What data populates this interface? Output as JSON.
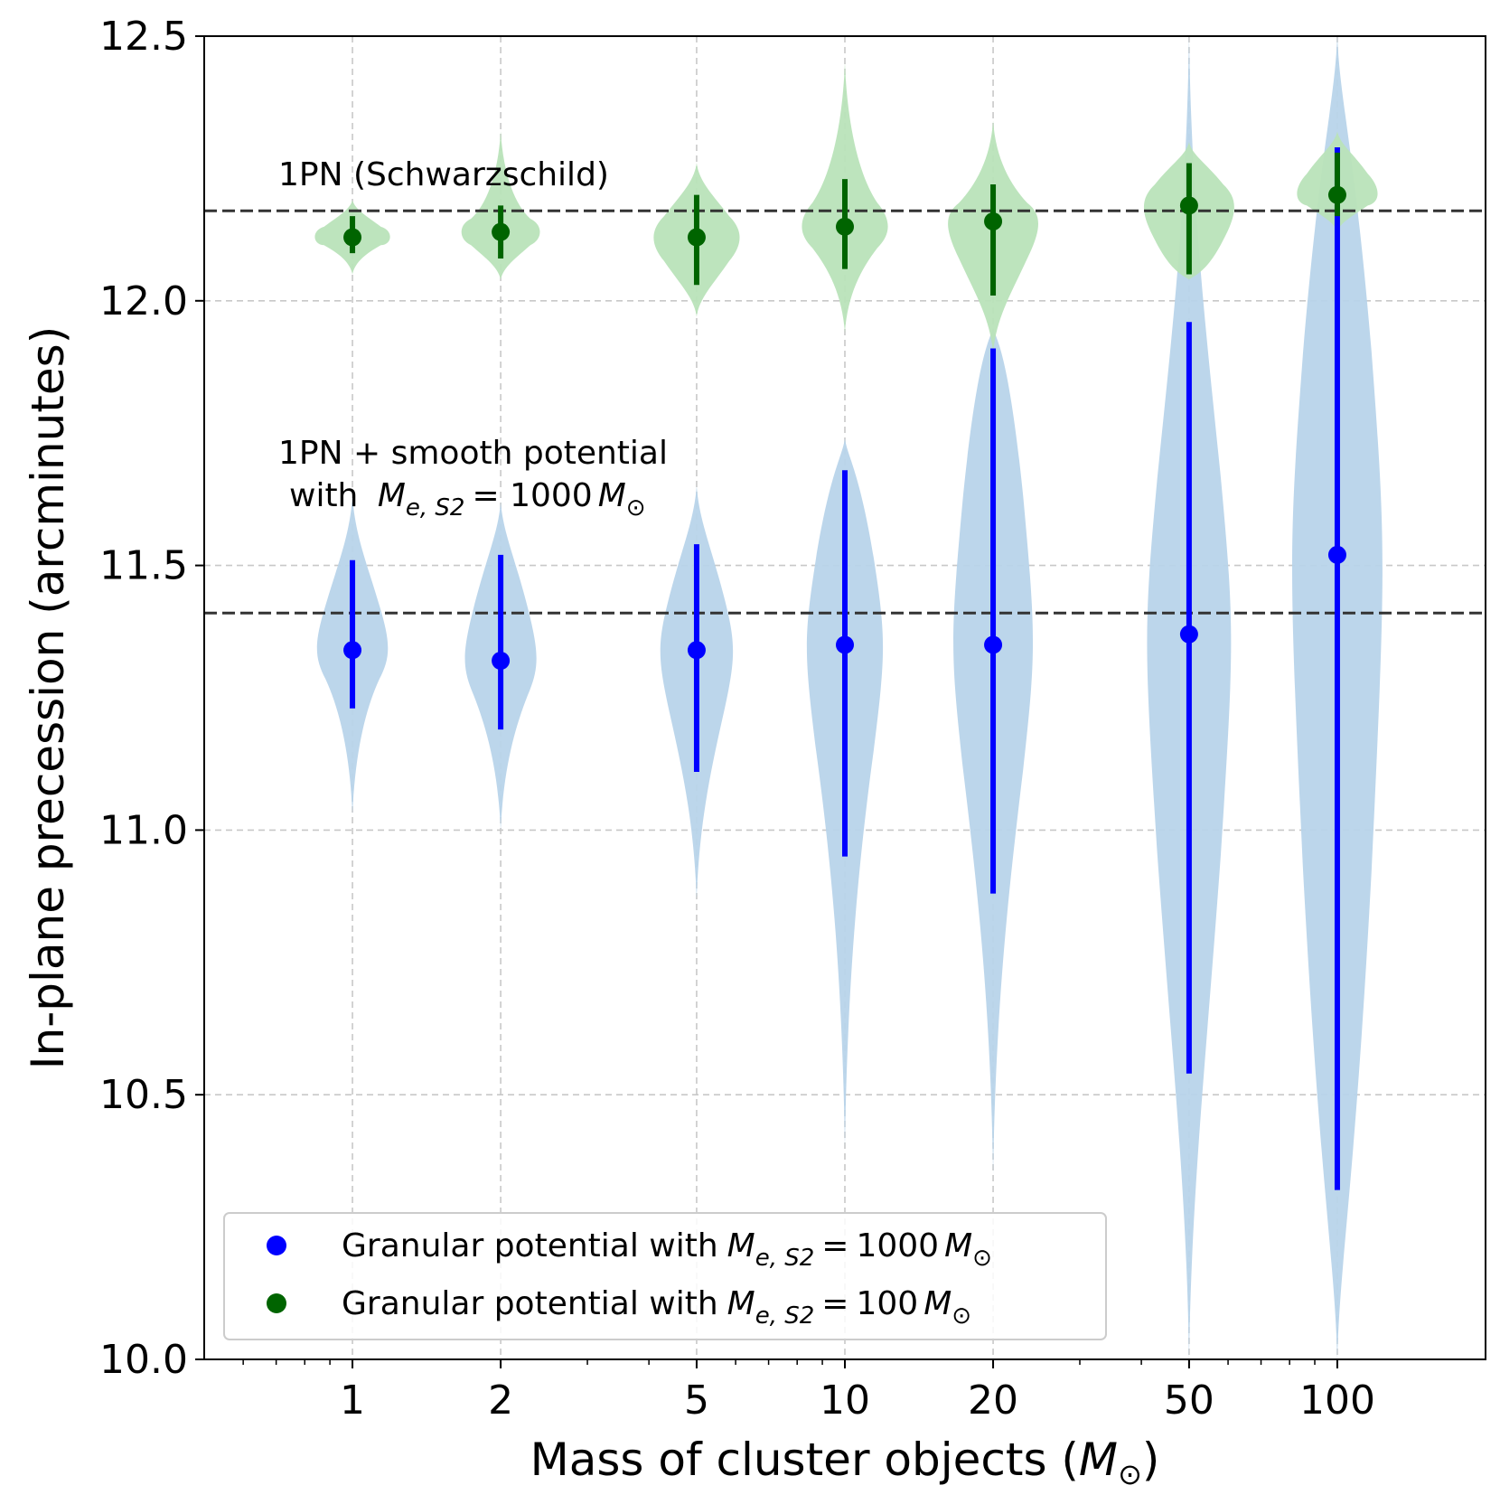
{
  "chart_data": {
    "type": "violin",
    "xscale": "log",
    "xlim": [
      0.5,
      200
    ],
    "ylim": [
      10.0,
      12.5
    ],
    "grid": true,
    "legend_position": "lower-left",
    "xlabel": {
      "text": "Mass of cluster objects (",
      "sym": "M",
      "sub": "⊙",
      "tail": ")"
    },
    "ylabel": "In-plane precession (arcminutes)",
    "xticks": [
      {
        "value": 1,
        "label": "1"
      },
      {
        "value": 2,
        "label": "2"
      },
      {
        "value": 5,
        "label": "5"
      },
      {
        "value": 10,
        "label": "10"
      },
      {
        "value": 20,
        "label": "20"
      },
      {
        "value": 50,
        "label": "50"
      },
      {
        "value": 100,
        "label": "100"
      }
    ],
    "yticks": [
      {
        "value": 10.0,
        "label": "10.0"
      },
      {
        "value": 10.5,
        "label": "10.5"
      },
      {
        "value": 11.0,
        "label": "11.0"
      },
      {
        "value": 11.5,
        "label": "11.5"
      },
      {
        "value": 12.0,
        "label": "12.0"
      },
      {
        "value": 12.5,
        "label": "12.5"
      }
    ],
    "reference_lines": [
      {
        "y": 12.17,
        "label": "1PN (Schwarzschild)"
      },
      {
        "y": 11.41,
        "label_line1": "1PN + smooth potential",
        "label_line2_prefix": "with",
        "label_line2_math": "M_e,S2 = 1000 M⊙"
      }
    ],
    "series": [
      {
        "name": "Granular potential with M_e,S2 = 1000 M⊙",
        "legend_prefix": "Granular potential with",
        "legend_value": "1000",
        "color": "#0000ff",
        "violin_color": "#b8d4ea",
        "points": [
          {
            "x": 1,
            "median": 11.34,
            "err_low": 11.23,
            "err_high": 11.51,
            "min": 11.03,
            "max": 11.63
          },
          {
            "x": 2,
            "median": 11.32,
            "err_low": 11.19,
            "err_high": 11.52,
            "min": 11.0,
            "max": 11.62
          },
          {
            "x": 5,
            "median": 11.34,
            "err_low": 11.11,
            "err_high": 11.54,
            "min": 10.87,
            "max": 11.65
          },
          {
            "x": 10,
            "median": 11.35,
            "err_low": 10.95,
            "err_high": 11.68,
            "min": 10.4,
            "max": 11.74
          },
          {
            "x": 20,
            "median": 11.35,
            "err_low": 10.88,
            "err_high": 11.91,
            "min": 10.35,
            "max": 11.95
          },
          {
            "x": 50,
            "median": 11.37,
            "err_low": 10.54,
            "err_high": 11.96,
            "min": 10.0,
            "max": 12.5
          },
          {
            "x": 100,
            "median": 11.52,
            "err_low": 10.32,
            "err_high": 12.29,
            "min": 10.0,
            "max": 12.5
          }
        ]
      },
      {
        "name": "Granular potential with M_e,S2 = 100 M⊙",
        "legend_prefix": "Granular potential with",
        "legend_value": "100",
        "color": "#006400",
        "violin_color": "#b9e3b9",
        "points": [
          {
            "x": 1,
            "median": 12.12,
            "err_low": 12.09,
            "err_high": 12.16,
            "min": 12.05,
            "max": 12.19
          },
          {
            "x": 2,
            "median": 12.13,
            "err_low": 12.08,
            "err_high": 12.18,
            "min": 12.04,
            "max": 12.32
          },
          {
            "x": 5,
            "median": 12.12,
            "err_low": 12.03,
            "err_high": 12.2,
            "min": 11.97,
            "max": 12.26
          },
          {
            "x": 10,
            "median": 12.14,
            "err_low": 12.06,
            "err_high": 12.23,
            "min": 11.94,
            "max": 12.45
          },
          {
            "x": 20,
            "median": 12.15,
            "err_low": 12.01,
            "err_high": 12.22,
            "min": 11.9,
            "max": 12.34
          },
          {
            "x": 50,
            "median": 12.18,
            "err_low": 12.05,
            "err_high": 12.26,
            "min": 12.04,
            "max": 12.3
          },
          {
            "x": 100,
            "median": 12.2,
            "err_low": 12.16,
            "err_high": 12.28,
            "min": 12.13,
            "max": 12.32
          }
        ]
      }
    ]
  }
}
